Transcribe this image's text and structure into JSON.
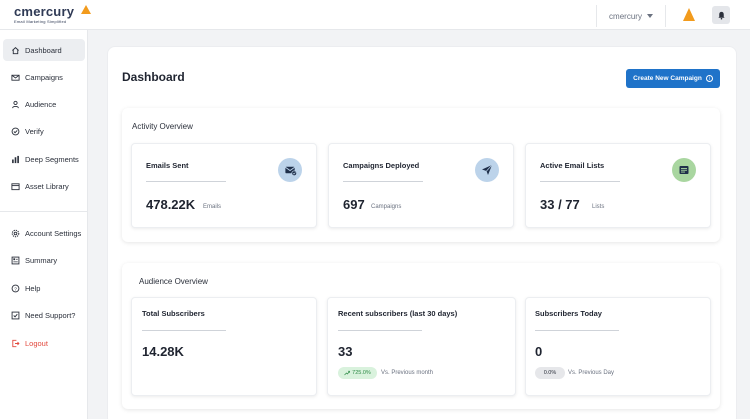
{
  "brand": {
    "name": "cmercury",
    "tagline": "Email Marketing Simplified",
    "accent": "#f29b1d"
  },
  "header": {
    "user": "cmercury"
  },
  "sidebar": {
    "items": [
      {
        "label": "Dashboard",
        "icon": "home-icon"
      },
      {
        "label": "Campaigns",
        "icon": "mail-icon"
      },
      {
        "label": "Audience",
        "icon": "user-icon"
      },
      {
        "label": "Verify",
        "icon": "check-circle-icon"
      },
      {
        "label": "Deep Segments",
        "icon": "bar-chart-icon"
      },
      {
        "label": "Asset Library",
        "icon": "folder-icon"
      },
      {
        "label": "Account Settings",
        "icon": "gear-icon"
      },
      {
        "label": "Summary",
        "icon": "summary-icon"
      },
      {
        "label": "Help",
        "icon": "help-icon"
      },
      {
        "label": "Need Support?",
        "icon": "support-icon"
      },
      {
        "label": "Logout",
        "icon": "logout-icon"
      }
    ]
  },
  "page": {
    "title": "Dashboard",
    "create_button": "Create New Campaign"
  },
  "activity": {
    "title": "Activity Overview",
    "cards": [
      {
        "title": "Emails Sent",
        "value": "478.22K",
        "unit": "Emails",
        "icon": "mail-check-icon",
        "icon_bg": "#bcd3ea"
      },
      {
        "title": "Campaigns Deployed",
        "value": "697",
        "unit": "Campaigns",
        "icon": "send-icon",
        "icon_bg": "#bcd3ea"
      },
      {
        "title": "Active Email Lists",
        "value": "33 / 77",
        "unit": "Lists",
        "icon": "list-icon",
        "icon_bg": "#a9d6a0"
      }
    ]
  },
  "audience": {
    "title": "Audience Overview",
    "cards": [
      {
        "title": "Total Subscribers",
        "value": "14.28K"
      },
      {
        "title": "Recent subscribers (last 30 days)",
        "value": "33",
        "badge": "725.0%",
        "note": "Vs. Previous month"
      },
      {
        "title": "Subscribers Today",
        "value": "0",
        "badge": "0.0%",
        "note": "Vs. Previous Day"
      }
    ]
  },
  "colors": {
    "primary": "#1f73c9",
    "logout": "#e2483d",
    "positive_bg": "#d9f2dd",
    "positive_text": "#2e8b47",
    "neutral_bg": "#e6e7ea"
  }
}
